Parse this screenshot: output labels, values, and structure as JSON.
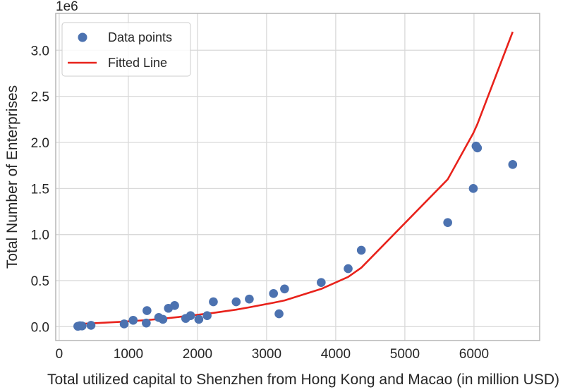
{
  "chart_data": {
    "type": "scatter",
    "title": "",
    "xlabel": "Total utilized capital to Shenzhen from Hong Kong and Macao (in million USD)",
    "ylabel": "Total Number of Enterprises",
    "y_offset_label": "1e6",
    "xlim": [
      -50,
      6950
    ],
    "ylim": [
      -0.15,
      3.4
    ],
    "x_ticks": [
      0,
      1000,
      2000,
      3000,
      4000,
      5000,
      6000
    ],
    "x_tick_labels": [
      "0",
      "1000",
      "2000",
      "3000",
      "4000",
      "5000",
      "6000"
    ],
    "y_ticks": [
      0.0,
      0.5,
      1.0,
      1.5,
      2.0,
      2.5,
      3.0
    ],
    "y_tick_labels": [
      "0.0",
      "0.5",
      "1.0",
      "1.5",
      "2.0",
      "2.5",
      "3.0"
    ],
    "grid": true,
    "legend_position": "top-left",
    "colors": {
      "points": "#4c72b0",
      "line": "#e8221b",
      "grid": "#d9d9d9",
      "frame": "#b5b5b5"
    },
    "series": [
      {
        "name": "Data points",
        "type": "scatter",
        "points": [
          {
            "x": 270,
            "y": 0.005
          },
          {
            "x": 300,
            "y": 0.01
          },
          {
            "x": 330,
            "y": 0.008
          },
          {
            "x": 460,
            "y": 0.015
          },
          {
            "x": 940,
            "y": 0.03
          },
          {
            "x": 1070,
            "y": 0.07
          },
          {
            "x": 1260,
            "y": 0.04
          },
          {
            "x": 1270,
            "y": 0.175
          },
          {
            "x": 1440,
            "y": 0.1
          },
          {
            "x": 1500,
            "y": 0.08
          },
          {
            "x": 1580,
            "y": 0.2
          },
          {
            "x": 1670,
            "y": 0.23
          },
          {
            "x": 1830,
            "y": 0.09
          },
          {
            "x": 1900,
            "y": 0.12
          },
          {
            "x": 2020,
            "y": 0.08
          },
          {
            "x": 2140,
            "y": 0.12
          },
          {
            "x": 2230,
            "y": 0.27
          },
          {
            "x": 2560,
            "y": 0.27
          },
          {
            "x": 2750,
            "y": 0.3
          },
          {
            "x": 3100,
            "y": 0.36
          },
          {
            "x": 3180,
            "y": 0.14
          },
          {
            "x": 3260,
            "y": 0.41
          },
          {
            "x": 3790,
            "y": 0.48
          },
          {
            "x": 4180,
            "y": 0.63
          },
          {
            "x": 4370,
            "y": 0.83
          },
          {
            "x": 5620,
            "y": 1.13
          },
          {
            "x": 5990,
            "y": 1.5
          },
          {
            "x": 6030,
            "y": 1.96
          },
          {
            "x": 6050,
            "y": 1.94
          },
          {
            "x": 6560,
            "y": 1.76
          }
        ]
      },
      {
        "name": "Fitted Line",
        "type": "line",
        "points": [
          {
            "x": 270,
            "y": 0.03
          },
          {
            "x": 330,
            "y": 0.032
          },
          {
            "x": 460,
            "y": 0.036
          },
          {
            "x": 940,
            "y": 0.055
          },
          {
            "x": 1270,
            "y": 0.072
          },
          {
            "x": 1580,
            "y": 0.093
          },
          {
            "x": 1900,
            "y": 0.12
          },
          {
            "x": 2230,
            "y": 0.15
          },
          {
            "x": 2560,
            "y": 0.185
          },
          {
            "x": 2750,
            "y": 0.21
          },
          {
            "x": 3100,
            "y": 0.26
          },
          {
            "x": 3260,
            "y": 0.285
          },
          {
            "x": 3790,
            "y": 0.41
          },
          {
            "x": 4180,
            "y": 0.54
          },
          {
            "x": 4370,
            "y": 0.64
          },
          {
            "x": 5620,
            "y": 1.6
          },
          {
            "x": 5990,
            "y": 2.1
          },
          {
            "x": 6050,
            "y": 2.2
          },
          {
            "x": 6560,
            "y": 3.2
          }
        ]
      }
    ]
  }
}
